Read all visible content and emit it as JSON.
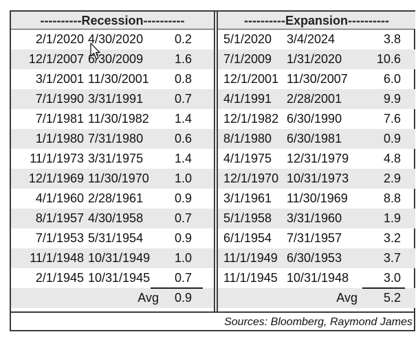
{
  "recession": {
    "header": "----------Recession----------",
    "rows": [
      [
        "2/1/2020",
        "4/30/2020",
        "0.2"
      ],
      [
        "12/1/2007",
        "6/30/2009",
        "1.6"
      ],
      [
        "3/1/2001",
        "11/30/2001",
        "0.8"
      ],
      [
        "7/1/1990",
        "3/31/1991",
        "0.7"
      ],
      [
        "7/1/1981",
        "11/30/1982",
        "1.4"
      ],
      [
        "1/1/1980",
        "7/31/1980",
        "0.6"
      ],
      [
        "11/1/1973",
        "3/31/1975",
        "1.4"
      ],
      [
        "12/1/1969",
        "11/30/1970",
        "1.0"
      ],
      [
        "4/1/1960",
        "2/28/1961",
        "0.9"
      ],
      [
        "8/1/1957",
        "4/30/1958",
        "0.7"
      ],
      [
        "7/1/1953",
        "5/31/1954",
        "0.9"
      ],
      [
        "11/1/1948",
        "10/31/1949",
        "1.0"
      ],
      [
        "2/1/1945",
        "10/31/1945",
        "0.7"
      ]
    ],
    "avg_label": "Avg",
    "avg_value": "0.9"
  },
  "expansion": {
    "header": "----------Expansion----------",
    "rows": [
      [
        "5/1/2020",
        "3/4/2024",
        "3.8"
      ],
      [
        "7/1/2009",
        "1/31/2020",
        "10.6"
      ],
      [
        "12/1/2001",
        "11/30/2007",
        "6.0"
      ],
      [
        "4/1/1991",
        "2/28/2001",
        "9.9"
      ],
      [
        "12/1/1982",
        "6/30/1990",
        "7.6"
      ],
      [
        "8/1/1980",
        "6/30/1981",
        "0.9"
      ],
      [
        "4/1/1975",
        "12/31/1979",
        "4.8"
      ],
      [
        "12/1/1970",
        "10/31/1973",
        "2.9"
      ],
      [
        "3/1/1961",
        "11/30/1969",
        "8.8"
      ],
      [
        "5/1/1958",
        "3/31/1960",
        "1.9"
      ],
      [
        "6/1/1954",
        "7/31/1957",
        "3.2"
      ],
      [
        "11/1/1949",
        "6/30/1953",
        "3.7"
      ],
      [
        "11/1/1945",
        "10/31/1948",
        "3.0"
      ]
    ],
    "avg_label": "Avg",
    "avg_value": "5.2"
  },
  "footer": {
    "source": "Sources: Bloomberg, Raymond James"
  },
  "colors": {
    "shade": "#e8e8e8",
    "border": "#3a3a3a"
  },
  "icons": {
    "cursor": "mouse-pointer-icon"
  }
}
